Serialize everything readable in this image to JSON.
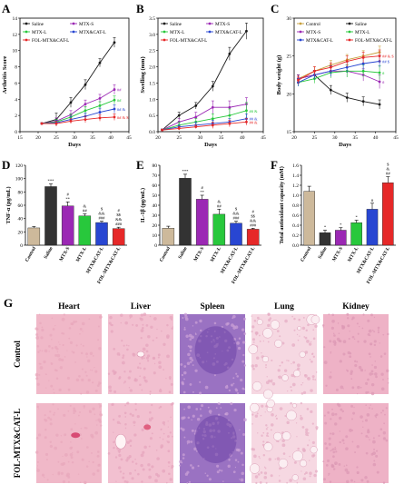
{
  "colors": {
    "control": "#c8a03c",
    "saline": "#1a1a1a",
    "mtx_s": "#9b28b4",
    "mtx_l": "#28c83c",
    "mtx_cat_l": "#2846d2",
    "fol_mtx_cat_l": "#e62828",
    "control_bar": "#cdb99b",
    "saline_bar": "#333333",
    "he_pink": "#eeb4c8",
    "he_purple": "#8c5ab4"
  },
  "chart_data": [
    {
      "panel": "A",
      "type": "line",
      "xlabel": "Days",
      "ylabel": "Arthritis Score",
      "xlim": [
        15,
        45
      ],
      "ylim": [
        0,
        14
      ],
      "xticks": [
        15,
        20,
        25,
        30,
        35,
        40,
        45
      ],
      "yticks": [
        0,
        2,
        4,
        6,
        8,
        10,
        12,
        14
      ],
      "legend_position": "top-left",
      "x": [
        21,
        25,
        29,
        33,
        37,
        41
      ],
      "series": [
        {
          "name": "Saline",
          "key": "saline",
          "values": [
            1.0,
            1.5,
            3.6,
            5.8,
            8.5,
            11.0
          ],
          "err": [
            0.1,
            0.8,
            0.6,
            0.6,
            0.5,
            0.6
          ],
          "annot": ""
        },
        {
          "name": "MTX-S",
          "key": "mtx_s",
          "values": [
            1.0,
            1.3,
            2.1,
            3.4,
            4.1,
            5.2
          ],
          "err": [
            0.1,
            0.4,
            0.5,
            0.5,
            0.5,
            0.6
          ],
          "annot": "##"
        },
        {
          "name": "MTX-L",
          "key": "mtx_l",
          "values": [
            1.0,
            1.2,
            1.8,
            2.6,
            3.2,
            3.9
          ],
          "err": [
            0.1,
            0.3,
            0.4,
            0.5,
            0.5,
            0.5
          ],
          "annot": "##"
        },
        {
          "name": "MTX&CAT-L",
          "key": "mtx_cat_l",
          "values": [
            1.0,
            1.1,
            1.5,
            1.9,
            2.4,
            2.8
          ],
          "err": [
            0.1,
            0.3,
            0.4,
            0.4,
            0.5,
            0.5
          ],
          "annot": "## &"
        },
        {
          "name": "FOL-MTX&CAT-L",
          "key": "fol_mtx_cat_l",
          "values": [
            1.0,
            1.0,
            1.3,
            1.5,
            1.7,
            1.8
          ],
          "err": [
            0.1,
            0.3,
            0.3,
            0.4,
            0.4,
            0.4
          ],
          "annot": "## & $"
        }
      ]
    },
    {
      "panel": "B",
      "type": "line",
      "xlabel": "Days",
      "ylabel": "Swelling (mm)",
      "xlim": [
        20,
        45
      ],
      "ylim": [
        0.0,
        3.5
      ],
      "xticks": [
        20,
        25,
        30,
        35,
        40,
        45
      ],
      "yticks": [
        0.0,
        0.5,
        1.0,
        1.5,
        2.0,
        2.5,
        3.0,
        3.5
      ],
      "legend_position": "top-left",
      "x": [
        21,
        25,
        29,
        33,
        37,
        41
      ],
      "series": [
        {
          "name": "Saline",
          "key": "saline",
          "values": [
            0.05,
            0.5,
            0.8,
            1.4,
            2.4,
            3.1
          ],
          "err": [
            0.03,
            0.1,
            0.1,
            0.15,
            0.2,
            0.25
          ],
          "annot": ""
        },
        {
          "name": "MTX-S",
          "key": "mtx_s",
          "values": [
            0.05,
            0.3,
            0.45,
            0.75,
            0.75,
            0.85
          ],
          "err": [
            0.03,
            0.1,
            0.15,
            0.2,
            0.2,
            0.2
          ],
          "annot": ""
        },
        {
          "name": "MTX-L",
          "key": "mtx_l",
          "values": [
            0.05,
            0.2,
            0.3,
            0.4,
            0.5,
            0.65
          ],
          "err": [
            0.03,
            0.1,
            0.1,
            0.15,
            0.2,
            0.25
          ],
          "annot": "## &"
        },
        {
          "name": "MTX&CAT-L",
          "key": "mtx_cat_l",
          "values": [
            0.05,
            0.15,
            0.2,
            0.25,
            0.3,
            0.4
          ],
          "err": [
            0.03,
            0.05,
            0.1,
            0.1,
            0.1,
            0.15
          ],
          "annot": "## &"
        },
        {
          "name": "FOL-MTX&CAT-L",
          "key": "fol_mtx_cat_l",
          "values": [
            0.05,
            0.1,
            0.15,
            0.2,
            0.25,
            0.3
          ],
          "err": [
            0.03,
            0.05,
            0.05,
            0.1,
            0.1,
            0.1
          ],
          "annot": "## &"
        }
      ]
    },
    {
      "panel": "C",
      "type": "line",
      "xlabel": "Days",
      "ylabel": "Body weight (g)",
      "xlim": [
        20,
        45
      ],
      "ylim": [
        15,
        30
      ],
      "xticks": [
        20,
        25,
        30,
        35,
        40,
        45
      ],
      "yticks": [
        15,
        20,
        25,
        30
      ],
      "legend_position": "top-left",
      "x": [
        21,
        25,
        29,
        33,
        37,
        41
      ],
      "series": [
        {
          "name": "Control",
          "key": "control",
          "values": [
            22.0,
            23.0,
            23.8,
            24.5,
            25.0,
            25.5
          ],
          "err": [
            0.5,
            0.6,
            0.6,
            0.7,
            0.7,
            0.8
          ],
          "annot": ""
        },
        {
          "name": "Saline",
          "key": "saline",
          "values": [
            22.0,
            22.5,
            20.5,
            19.5,
            19.0,
            18.6
          ],
          "err": [
            0.5,
            0.6,
            0.6,
            0.6,
            0.6,
            0.6
          ],
          "annot": ""
        },
        {
          "name": "MTX-S",
          "key": "mtx_s",
          "values": [
            22.0,
            22.5,
            23.0,
            23.0,
            22.5,
            21.6
          ],
          "err": [
            0.5,
            0.6,
            0.7,
            0.8,
            0.8,
            0.9
          ],
          "annot": "#"
        },
        {
          "name": "MTX-L",
          "key": "mtx_l",
          "values": [
            21.5,
            22.0,
            22.8,
            23.0,
            23.0,
            22.8
          ],
          "err": [
            0.5,
            0.6,
            0.7,
            0.8,
            0.8,
            0.9
          ],
          "annot": "#"
        },
        {
          "name": "MTX&CAT-L",
          "key": "mtx_cat_l",
          "values": [
            21.5,
            22.5,
            23.0,
            23.5,
            24.0,
            24.3
          ],
          "err": [
            0.5,
            0.6,
            0.7,
            0.7,
            0.8,
            0.8
          ],
          "annot": "## $"
        },
        {
          "name": "FOL-MTX&CAT-L",
          "key": "fol_mtx_cat_l",
          "values": [
            21.8,
            23.0,
            23.5,
            24.3,
            24.8,
            25.0
          ],
          "err": [
            0.5,
            0.6,
            0.6,
            0.7,
            0.7,
            0.8
          ],
          "annot": "## & $"
        }
      ]
    },
    {
      "panel": "D",
      "type": "bar",
      "ylabel": "TNF-α (pg/mL)",
      "ylim": [
        0,
        120
      ],
      "yticks": [
        0,
        20,
        40,
        60,
        80,
        100,
        120
      ],
      "categories": [
        "Control",
        "Saline",
        "MTX-S",
        "MTX-L",
        "MTX&CAT-L",
        "FOL-MTX&CAT-L"
      ],
      "values": [
        26,
        88,
        59,
        44,
        34,
        25
      ],
      "err": [
        2,
        4,
        6,
        3,
        2,
        2
      ],
      "annot": [
        "",
        "***",
        "# **",
        "& ##",
        "$ && ###",
        "# $$ && ###"
      ]
    },
    {
      "panel": "E",
      "type": "bar",
      "ylabel": "IL-1β (pg/mL)",
      "ylim": [
        0,
        80
      ],
      "yticks": [
        0,
        10,
        20,
        30,
        40,
        50,
        60,
        70,
        80
      ],
      "categories": [
        "Control",
        "Saline",
        "MTX-S",
        "MTX-L",
        "MTX&CAT-L",
        "FOL-MTX&CAT-L"
      ],
      "values": [
        17,
        67,
        46,
        31,
        22,
        16
      ],
      "err": [
        2,
        4,
        4,
        5,
        2,
        1
      ],
      "annot": [
        "",
        "***",
        "# **",
        "& ##",
        "$ && ###",
        "# $$ && ###"
      ]
    },
    {
      "panel": "F",
      "type": "bar",
      "ylabel": "Total antioxidant capacity (mM)",
      "ylim": [
        0.0,
        1.6
      ],
      "yticks": [
        0.0,
        0.2,
        0.4,
        0.6,
        0.8,
        1.0,
        1.2,
        1.4,
        1.6
      ],
      "categories": [
        "Control",
        "Saline",
        "MTX-S",
        "MTX-L",
        "MTX&CAT-L",
        "FOL-MTX&CAT-L"
      ],
      "values": [
        1.08,
        0.25,
        0.3,
        0.45,
        0.72,
        1.25
      ],
      "err": [
        0.1,
        0.05,
        0.05,
        0.05,
        0.12,
        0.12
      ],
      "annot": [
        "",
        "*",
        "*",
        "*",
        "#",
        "$ & ##"
      ]
    }
  ],
  "panel_letters": [
    "A",
    "B",
    "C",
    "D",
    "E",
    "F",
    "G"
  ],
  "histology": {
    "organs": [
      "Heart",
      "Liver",
      "Spleen",
      "Lung",
      "Kidney"
    ],
    "row_labels": [
      "Control",
      "FOL-MTX&CAT-L"
    ]
  }
}
